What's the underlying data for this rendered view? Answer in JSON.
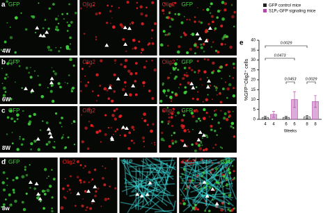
{
  "panels": [
    {
      "label": "a",
      "age": "4W",
      "images": [
        {
          "channels": [
            "GFP"
          ]
        },
        {
          "channels": [
            "Olig2"
          ]
        },
        {
          "channels": [
            "Olig2",
            "GFP"
          ]
        }
      ]
    },
    {
      "label": "b",
      "age": "6W",
      "images": [
        {
          "channels": [
            "GFP"
          ]
        },
        {
          "channels": [
            "Olig2"
          ]
        },
        {
          "channels": [
            "Olig2",
            "GFP"
          ]
        }
      ]
    },
    {
      "label": "c",
      "age": "8W",
      "images": [
        {
          "channels": [
            "GFP"
          ]
        },
        {
          "channels": [
            "Olig2"
          ]
        },
        {
          "channels": [
            "Olig2",
            "GFP"
          ]
        }
      ]
    },
    {
      "label": "d",
      "age": "8w",
      "images": [
        {
          "channels": [
            "GFP"
          ]
        },
        {
          "channels": [
            "Olig2"
          ]
        },
        {
          "channels": [
            "S1P"
          ]
        },
        {
          "channels": [
            "Olig2",
            "S1P",
            "GFP"
          ]
        }
      ]
    }
  ],
  "chart_data": {
    "type": "bar",
    "panel_label": "e",
    "y_label": "%GFP⁺Olig2⁺ cells",
    "x_label": "Weeks",
    "categories": [
      "4",
      "6",
      "8"
    ],
    "series": [
      {
        "name": "GFP control mice",
        "color": "#222222",
        "values": [
          1,
          1,
          1.2
        ],
        "errors": [
          0.6,
          0.5,
          0.8
        ]
      },
      {
        "name": "S1P₁-GFP signaling mice",
        "color": "#b04aa8",
        "values": [
          2.5,
          10,
          9
        ],
        "errors": [
          1.5,
          4,
          3
        ]
      }
    ],
    "ylim": [
      0,
      40
    ],
    "yticks": [
      0,
      5,
      10,
      15,
      20,
      25,
      30,
      35,
      40
    ],
    "legend": "top",
    "annotations": [
      "0.0029",
      "0.0473",
      "0.0453",
      "0.0029"
    ]
  }
}
